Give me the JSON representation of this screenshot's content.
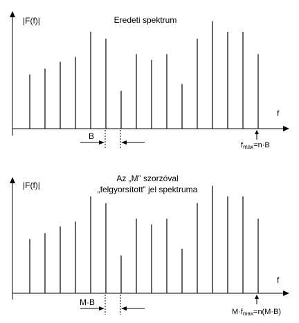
{
  "top_panel": {
    "y_label": "|F(f)|",
    "title_lines": [
      "Eredeti spektrum"
    ],
    "x_label": "f",
    "spacing_label": "B",
    "fmax_main": "f",
    "fmax_sub": "max",
    "fmax_tail": "=n·B"
  },
  "bottom_panel": {
    "y_label": "|F(f)|",
    "title_lines": [
      "Az „M” szorzóval",
      "„felgyorsított” jel spektruma"
    ],
    "x_label": "f",
    "spacing_label": "M·B",
    "fmax_main": "M·f",
    "fmax_sub": "max",
    "fmax_tail": "=n(M·B)"
  },
  "spectrum": {
    "line_count": 16,
    "relative_heights": [
      0.56,
      0.62,
      0.69,
      0.74,
      1.0,
      0.93,
      0.39,
      0.77,
      0.71,
      0.77,
      0.46,
      0.93,
      1.11,
      1.0,
      1.0,
      0.77
    ]
  },
  "colors": {
    "line": "#000000",
    "background": "#ffffff"
  }
}
